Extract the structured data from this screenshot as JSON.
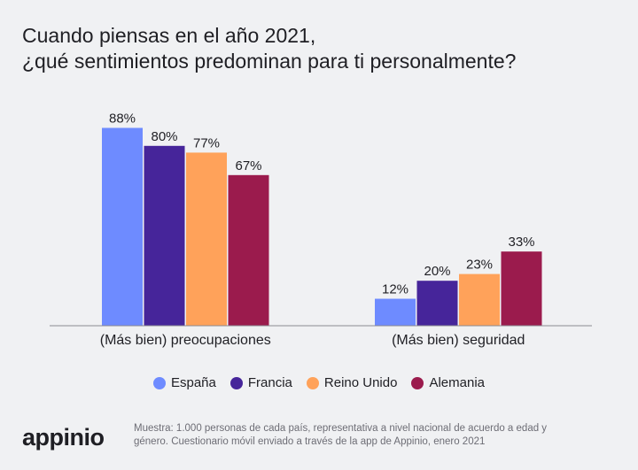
{
  "title": {
    "line1": "Cuando piensas en el año 2021,",
    "line2": "¿qué sentimientos predominan para ti personalmente?"
  },
  "chart_data": {
    "type": "bar",
    "title": "Cuando piensas en el año 2021, ¿qué sentimientos predominan para ti personalmente?",
    "categories": [
      "(Más bien) preocupaciones",
      "(Más bien) seguridad"
    ],
    "series": [
      {
        "name": "España",
        "color": "#6e8bff",
        "values": [
          88,
          12
        ],
        "labels": [
          "88%",
          "12%"
        ]
      },
      {
        "name": "Francia",
        "color": "#46259a",
        "values": [
          80,
          20
        ],
        "labels": [
          "80%",
          "20%"
        ]
      },
      {
        "name": "Reino Unido",
        "color": "#ffa25a",
        "values": [
          77,
          23
        ],
        "labels": [
          "77%",
          "23%"
        ]
      },
      {
        "name": "Alemania",
        "color": "#9b1b4d",
        "values": [
          67,
          33
        ],
        "labels": [
          "67%",
          "33%"
        ]
      }
    ],
    "ylim": [
      0,
      100
    ],
    "xlabel": "",
    "ylabel": "",
    "grid": false,
    "legend": "bottom"
  },
  "footer": {
    "logo": "appinio",
    "note_line1": "Muestra: 1.000 personas de cada país, representativa a nivel nacional de acuerdo a edad y",
    "note_line2": "género. Cuestionario móvil enviado a través de la app de Appinio, enero 2021"
  }
}
